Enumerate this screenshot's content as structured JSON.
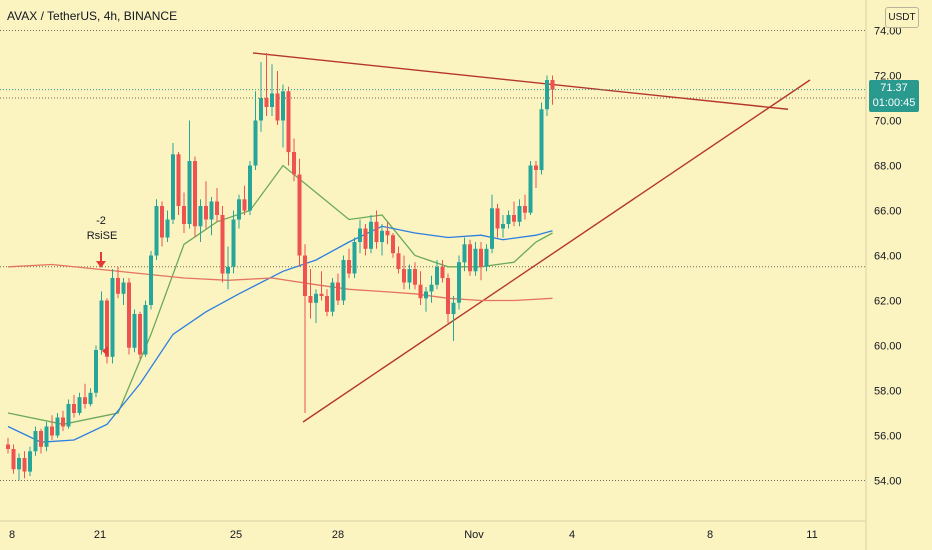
{
  "header": {
    "title": "AVAX / TetherUS, 4h, BINANCE",
    "currency": "USDT"
  },
  "last_price": {
    "value": "71.37",
    "countdown": "01:00:45"
  },
  "signal": {
    "count": "-2",
    "name": "RsiSE"
  },
  "colors": {
    "background": "#fbf3c0",
    "up": "#26a69a",
    "down": "#ef5350",
    "ma_green": "#6aaa5a",
    "ma_blue": "#2b7fe0",
    "ma_red": "#e57460",
    "trendline": "#b5362c",
    "signal_arrow": "#e53935"
  },
  "chart_data": {
    "type": "candlestick",
    "title": "AVAX / TetherUS, 4h, BINANCE",
    "y_axis": {
      "ticks": [
        "54.00",
        "56.00",
        "58.00",
        "60.00",
        "62.00",
        "64.00",
        "66.00",
        "68.00",
        "70.00",
        "72.00",
        "74.00"
      ],
      "range": [
        53.2,
        74.9
      ],
      "position": "right"
    },
    "x_axis": {
      "ticks": [
        "8",
        "21",
        "25",
        "28",
        "Nov",
        "4",
        "8",
        "11"
      ]
    },
    "horizontal_levels": [
      74.0,
      71.0,
      63.5,
      54.0
    ],
    "candles": [
      [
        55.6,
        55.9,
        55.2,
        55.4
      ],
      [
        55.4,
        55.6,
        54.3,
        54.5
      ],
      [
        54.5,
        55.2,
        54.0,
        55.0
      ],
      [
        55.0,
        55.3,
        54.1,
        54.4
      ],
      [
        54.4,
        55.5,
        54.2,
        55.3
      ],
      [
        55.3,
        56.4,
        55.1,
        56.2
      ],
      [
        56.2,
        56.3,
        55.2,
        55.5
      ],
      [
        55.5,
        56.6,
        55.3,
        56.4
      ],
      [
        56.4,
        56.9,
        55.8,
        56.0
      ],
      [
        56.0,
        57.0,
        55.9,
        56.8
      ],
      [
        56.8,
        57.1,
        56.2,
        56.4
      ],
      [
        56.4,
        57.6,
        56.3,
        57.4
      ],
      [
        57.4,
        57.8,
        56.8,
        57.0
      ],
      [
        57.0,
        57.9,
        56.9,
        57.7
      ],
      [
        57.7,
        58.3,
        57.2,
        57.4
      ],
      [
        57.4,
        58.1,
        57.3,
        57.9
      ],
      [
        57.9,
        60.0,
        57.7,
        59.8
      ],
      [
        59.8,
        62.4,
        59.6,
        62.0
      ],
      [
        62.0,
        62.1,
        59.2,
        59.5
      ],
      [
        59.5,
        63.4,
        59.2,
        63.0
      ],
      [
        63.0,
        63.5,
        62.1,
        62.3
      ],
      [
        62.3,
        63.0,
        61.8,
        62.8
      ],
      [
        62.8,
        63.0,
        59.6,
        59.9
      ],
      [
        59.9,
        61.6,
        59.7,
        61.4
      ],
      [
        61.4,
        61.5,
        59.4,
        59.6
      ],
      [
        59.6,
        62.0,
        59.5,
        61.8
      ],
      [
        61.8,
        64.2,
        61.6,
        64.0
      ],
      [
        64.0,
        66.5,
        63.8,
        66.2
      ],
      [
        66.2,
        66.4,
        64.4,
        64.8
      ],
      [
        64.8,
        66.0,
        64.6,
        65.6
      ],
      [
        65.6,
        69.0,
        65.4,
        68.5
      ],
      [
        68.5,
        68.6,
        65.8,
        66.2
      ],
      [
        66.2,
        66.8,
        65.0,
        65.4
      ],
      [
        65.4,
        70.0,
        65.2,
        68.2
      ],
      [
        68.2,
        68.4,
        64.8,
        65.3
      ],
      [
        65.3,
        66.5,
        64.6,
        66.2
      ],
      [
        66.2,
        67.3,
        65.2,
        65.6
      ],
      [
        65.6,
        66.6,
        64.9,
        66.4
      ],
      [
        66.4,
        67.0,
        65.5,
        65.8
      ],
      [
        65.8,
        66.2,
        62.8,
        63.2
      ],
      [
        63.2,
        64.4,
        62.5,
        63.5
      ],
      [
        63.5,
        66.0,
        63.2,
        65.6
      ],
      [
        65.6,
        66.7,
        65.2,
        66.5
      ],
      [
        66.5,
        67.1,
        65.8,
        66.0
      ],
      [
        66.0,
        68.2,
        65.8,
        68.0
      ],
      [
        68.0,
        71.3,
        67.8,
        70.0
      ],
      [
        70.0,
        72.6,
        69.5,
        71.0
      ],
      [
        71.0,
        73.0,
        70.2,
        70.6
      ],
      [
        70.6,
        72.5,
        70.2,
        71.2
      ],
      [
        71.2,
        72.2,
        69.8,
        70.0
      ],
      [
        70.0,
        71.6,
        68.8,
        71.3
      ],
      [
        71.3,
        71.5,
        68.0,
        68.6
      ],
      [
        68.6,
        69.2,
        67.3,
        67.6
      ],
      [
        67.6,
        68.3,
        63.5,
        64.0
      ],
      [
        64.0,
        64.5,
        57.0,
        62.2
      ],
      [
        62.2,
        63.4,
        61.2,
        61.9
      ],
      [
        61.9,
        62.5,
        61.0,
        62.3
      ],
      [
        62.3,
        63.3,
        62.0,
        62.2
      ],
      [
        62.2,
        62.5,
        61.3,
        61.5
      ],
      [
        61.5,
        63.0,
        61.3,
        62.8
      ],
      [
        62.8,
        63.2,
        61.8,
        62.0
      ],
      [
        62.0,
        64.0,
        61.8,
        63.8
      ],
      [
        63.8,
        64.3,
        63.0,
        63.2
      ],
      [
        63.2,
        64.8,
        63.0,
        64.6
      ],
      [
        64.6,
        65.6,
        64.1,
        65.2
      ],
      [
        65.2,
        65.4,
        64.0,
        64.3
      ],
      [
        64.3,
        65.8,
        64.1,
        65.5
      ],
      [
        65.5,
        66.0,
        64.3,
        64.6
      ],
      [
        64.6,
        65.4,
        64.0,
        65.1
      ],
      [
        65.1,
        65.5,
        64.5,
        64.9
      ],
      [
        64.9,
        65.0,
        63.9,
        64.1
      ],
      [
        64.1,
        64.4,
        63.2,
        63.4
      ],
      [
        63.4,
        64.0,
        62.5,
        62.8
      ],
      [
        62.8,
        63.6,
        62.5,
        63.4
      ],
      [
        63.4,
        63.7,
        62.5,
        62.7
      ],
      [
        62.7,
        63.3,
        61.8,
        62.1
      ],
      [
        62.1,
        62.6,
        61.5,
        62.4
      ],
      [
        62.4,
        63.1,
        61.9,
        62.7
      ],
      [
        62.7,
        63.8,
        62.5,
        63.5
      ],
      [
        63.5,
        63.8,
        62.8,
        63.0
      ],
      [
        63.0,
        63.2,
        61.0,
        61.4
      ],
      [
        61.4,
        62.2,
        60.2,
        61.9
      ],
      [
        61.9,
        64.0,
        61.6,
        63.7
      ],
      [
        63.7,
        64.8,
        63.3,
        64.5
      ],
      [
        64.5,
        64.7,
        63.1,
        63.3
      ],
      [
        63.3,
        64.6,
        63.1,
        64.3
      ],
      [
        64.3,
        64.6,
        62.9,
        63.5
      ],
      [
        63.5,
        64.5,
        63.3,
        64.3
      ],
      [
        64.3,
        66.7,
        64.1,
        66.1
      ],
      [
        66.1,
        66.3,
        64.8,
        65.2
      ],
      [
        65.2,
        65.8,
        64.8,
        65.4
      ],
      [
        65.4,
        66.0,
        65.2,
        65.8
      ],
      [
        65.8,
        66.4,
        65.3,
        65.5
      ],
      [
        65.5,
        66.5,
        65.3,
        66.2
      ],
      [
        66.2,
        66.7,
        65.6,
        65.9
      ],
      [
        65.9,
        68.2,
        65.8,
        68.0
      ],
      [
        68.0,
        68.2,
        67.0,
        67.8
      ],
      [
        67.8,
        70.8,
        67.6,
        70.5
      ],
      [
        70.5,
        72.0,
        70.2,
        71.8
      ],
      [
        71.8,
        72.0,
        70.7,
        71.37
      ]
    ],
    "moving_averages": [
      {
        "color": "#6aaa5a",
        "points": [
          [
            0,
            57.0
          ],
          [
            10,
            56.5
          ],
          [
            20,
            57.0
          ],
          [
            26,
            60.5
          ],
          [
            32,
            64.5
          ],
          [
            38,
            65.5
          ],
          [
            44,
            66.0
          ],
          [
            50,
            68.0
          ],
          [
            56,
            66.8
          ],
          [
            62,
            65.6
          ],
          [
            68,
            65.8
          ],
          [
            74,
            64.0
          ],
          [
            80,
            63.5
          ],
          [
            86,
            63.5
          ],
          [
            92,
            63.7
          ],
          [
            96,
            64.6
          ],
          [
            99,
            65.0
          ]
        ]
      },
      {
        "color": "#2b7fe0",
        "points": [
          [
            0,
            56.4
          ],
          [
            6,
            55.7
          ],
          [
            12,
            55.8
          ],
          [
            18,
            56.5
          ],
          [
            24,
            58.3
          ],
          [
            30,
            60.5
          ],
          [
            36,
            61.5
          ],
          [
            42,
            62.3
          ],
          [
            50,
            63.3
          ],
          [
            56,
            63.8
          ],
          [
            62,
            64.6
          ],
          [
            68,
            65.3
          ],
          [
            74,
            65.0
          ],
          [
            80,
            64.8
          ],
          [
            86,
            64.9
          ],
          [
            90,
            64.7
          ],
          [
            96,
            64.9
          ],
          [
            99,
            65.1
          ]
        ]
      },
      {
        "color": "#e57460",
        "points": [
          [
            0,
            63.5
          ],
          [
            8,
            63.6
          ],
          [
            16,
            63.4
          ],
          [
            24,
            63.2
          ],
          [
            32,
            63.0
          ],
          [
            40,
            62.9
          ],
          [
            48,
            63.0
          ],
          [
            56,
            62.7
          ],
          [
            62,
            62.5
          ],
          [
            68,
            62.4
          ],
          [
            74,
            62.3
          ],
          [
            80,
            62.1
          ],
          [
            86,
            62.0
          ],
          [
            92,
            62.0
          ],
          [
            99,
            62.1
          ]
        ]
      }
    ],
    "trendlines": [
      {
        "from": [
          253,
          73.0
        ],
        "to": [
          788,
          70.5
        ]
      },
      {
        "from": [
          303,
          56.6
        ],
        "to": [
          810,
          71.8
        ]
      }
    ]
  }
}
